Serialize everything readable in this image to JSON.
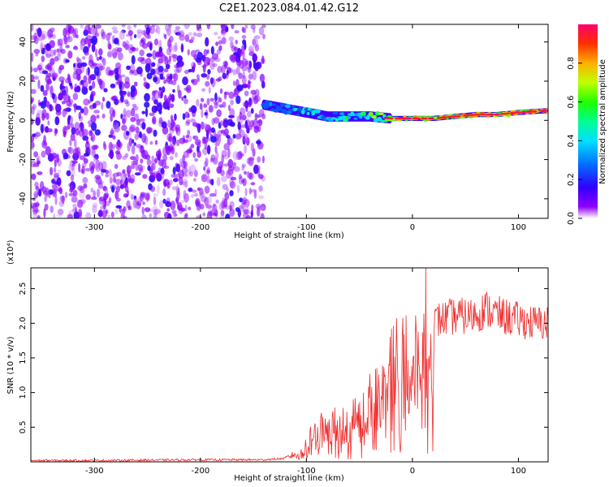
{
  "title": "C2E1.2023.084.01.42.G12",
  "colors": {
    "trace": "#ee2b2b",
    "axis": "#000000",
    "background": "#ffffff"
  },
  "chart_data": [
    {
      "type": "heatmap",
      "xlabel": "Height of straight line (km)",
      "ylabel": "Frequency (Hz)",
      "xlim": [
        -360,
        128
      ],
      "ylim": [
        -50,
        49
      ],
      "xticks": [
        -300,
        -200,
        -100,
        0,
        100
      ],
      "xtick_labels": [
        "-300",
        "-200",
        "-100",
        "0",
        "100"
      ],
      "yticks": [
        40,
        20,
        0,
        -20,
        -40
      ],
      "ytick_labels": [
        "40",
        "20",
        "0",
        "-20",
        "-40"
      ],
      "colorbar": {
        "label": "Normalized spectral amplitude",
        "range": [
          0,
          1
        ],
        "ticks": [
          0.0,
          0.2,
          0.4,
          0.6,
          0.8
        ],
        "tick_labels": [
          "0.0",
          "0.2",
          "0.4",
          "0.6",
          "0.8"
        ],
        "colormap": "rainbow"
      },
      "features": {
        "noise_region_x": [
          -360,
          -140
        ],
        "signal_ridge": [
          {
            "x": -140,
            "freq": 8,
            "amplitude": 0.3
          },
          {
            "x": -120,
            "freq": 6,
            "amplitude": 0.45
          },
          {
            "x": -100,
            "freq": 4,
            "amplitude": 0.5
          },
          {
            "x": -80,
            "freq": 2,
            "amplitude": 0.55
          },
          {
            "x": -60,
            "freq": 2,
            "amplitude": 0.6
          },
          {
            "x": -40,
            "freq": 2,
            "amplitude": 0.65
          },
          {
            "x": -20,
            "freq": 1,
            "amplitude": 0.8
          },
          {
            "x": 0,
            "freq": 1,
            "amplitude": 0.85
          },
          {
            "x": 20,
            "freq": 1,
            "amplitude": 0.9
          },
          {
            "x": 40,
            "freq": 2,
            "amplitude": 0.85
          },
          {
            "x": 60,
            "freq": 3,
            "amplitude": 0.9
          },
          {
            "x": 80,
            "freq": 3,
            "amplitude": 0.9
          },
          {
            "x": 100,
            "freq": 4,
            "amplitude": 0.9
          },
          {
            "x": 128,
            "freq": 5,
            "amplitude": 0.95
          }
        ]
      }
    },
    {
      "type": "line",
      "xlabel": "Height of straight line (km)",
      "ylabel": "SNR (10 * v/v)",
      "yscale_label": "(x10⁴)",
      "xlim": [
        -360,
        128
      ],
      "ylim": [
        0,
        2.8
      ],
      "xticks": [
        -300,
        -200,
        -100,
        0,
        100
      ],
      "xtick_labels": [
        "-300",
        "-200",
        "-100",
        "0",
        "100"
      ],
      "yticks": [
        0.5,
        1.0,
        1.5,
        2.0,
        2.5
      ],
      "ytick_labels": [
        "0.5",
        "1.0",
        "1.5",
        "2.0",
        "2.5"
      ],
      "series": [
        {
          "x": [
            -360,
            -300,
            -200,
            -140,
            -120,
            -105,
            -95,
            -85,
            -75,
            -60,
            -45,
            -35,
            -25,
            -15,
            -5,
            5,
            15,
            25,
            40,
            55,
            70,
            85,
            100,
            115,
            128
          ],
          "y": [
            0.02,
            0.02,
            0.03,
            0.03,
            0.05,
            0.15,
            0.35,
            0.5,
            0.5,
            0.55,
            0.75,
            0.95,
            1.2,
            1.45,
            1.5,
            1.7,
            1.95,
            2.05,
            2.1,
            2.1,
            2.2,
            2.1,
            2.05,
            2.0,
            2.0
          ]
        }
      ]
    }
  ]
}
